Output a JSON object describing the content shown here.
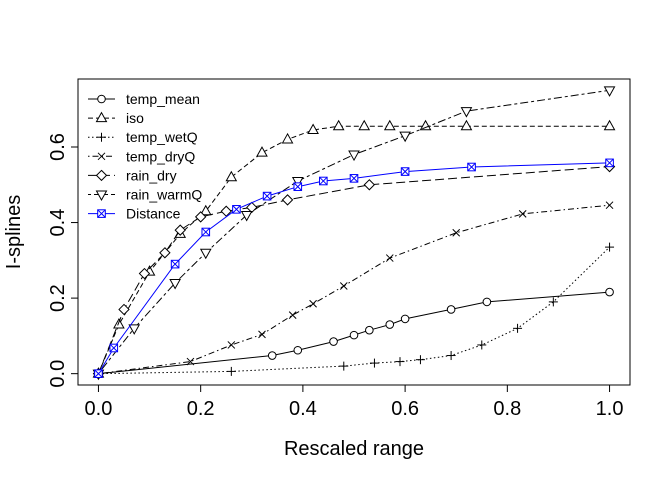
{
  "chart_data": {
    "type": "line",
    "title": "",
    "xlabel": "Rescaled range",
    "ylabel": "I-splines",
    "xlim": [
      -0.04,
      1.04
    ],
    "ylim": [
      -0.03,
      0.78
    ],
    "xticks": [
      0.0,
      0.2,
      0.4,
      0.6,
      0.8,
      1.0
    ],
    "xtick_labels": [
      "0.0",
      "0.2",
      "0.4",
      "0.6",
      "0.8",
      "1.0"
    ],
    "yticks": [
      0.0,
      0.2,
      0.4,
      0.6
    ],
    "ytick_labels": [
      "0.0",
      "0.2",
      "0.4",
      "0.6"
    ],
    "grid": false,
    "legend_position": "top-left",
    "series": [
      {
        "name": "temp_mean",
        "color": "#000000",
        "line_style": "solid",
        "marker": "circle",
        "x": [
          0.0,
          0.34,
          0.39,
          0.46,
          0.5,
          0.53,
          0.57,
          0.6,
          0.69,
          0.76,
          1.0
        ],
        "y": [
          0.0,
          0.048,
          0.062,
          0.085,
          0.102,
          0.115,
          0.13,
          0.145,
          0.17,
          0.19,
          0.216
        ]
      },
      {
        "name": "iso",
        "color": "#000000",
        "line_style": "dashed",
        "marker": "triangle-up",
        "x": [
          0.0,
          0.04,
          0.1,
          0.16,
          0.21,
          0.26,
          0.32,
          0.37,
          0.42,
          0.47,
          0.52,
          0.57,
          0.64,
          0.72,
          1.0
        ],
        "y": [
          0.0,
          0.13,
          0.27,
          0.37,
          0.43,
          0.52,
          0.585,
          0.62,
          0.645,
          0.655,
          0.655,
          0.655,
          0.655,
          0.655,
          0.655
        ]
      },
      {
        "name": "temp_wetQ",
        "color": "#000000",
        "line_style": "dotted",
        "marker": "plus",
        "x": [
          0.0,
          0.26,
          0.48,
          0.54,
          0.59,
          0.63,
          0.69,
          0.75,
          0.82,
          0.89,
          1.0
        ],
        "y": [
          0.0,
          0.006,
          0.02,
          0.028,
          0.032,
          0.037,
          0.048,
          0.076,
          0.12,
          0.19,
          0.335
        ]
      },
      {
        "name": "temp_dryQ",
        "color": "#000000",
        "line_style": "dashdot",
        "marker": "cross",
        "x": [
          0.0,
          0.18,
          0.26,
          0.32,
          0.38,
          0.42,
          0.48,
          0.57,
          0.7,
          0.83,
          1.0
        ],
        "y": [
          0.0,
          0.032,
          0.076,
          0.104,
          0.155,
          0.185,
          0.232,
          0.306,
          0.373,
          0.423,
          0.446
        ]
      },
      {
        "name": "rain_dry",
        "color": "#000000",
        "line_style": "longdash",
        "marker": "diamond",
        "x": [
          0.0,
          0.05,
          0.09,
          0.13,
          0.16,
          0.2,
          0.25,
          0.3,
          0.37,
          0.53,
          1.0
        ],
        "y": [
          0.0,
          0.17,
          0.265,
          0.32,
          0.38,
          0.415,
          0.43,
          0.44,
          0.46,
          0.5,
          0.548
        ]
      },
      {
        "name": "rain_warmQ",
        "color": "#000000",
        "line_style": "twodash",
        "marker": "triangle-down",
        "x": [
          0.0,
          0.07,
          0.15,
          0.21,
          0.29,
          0.39,
          0.5,
          0.6,
          0.72,
          1.0
        ],
        "y": [
          0.0,
          0.12,
          0.24,
          0.32,
          0.42,
          0.51,
          0.58,
          0.63,
          0.695,
          0.75
        ]
      },
      {
        "name": "Distance",
        "color": "#0000ff",
        "line_style": "solid",
        "marker": "square-x",
        "x": [
          0.0,
          0.03,
          0.15,
          0.21,
          0.27,
          0.33,
          0.39,
          0.44,
          0.5,
          0.6,
          0.73,
          1.0
        ],
        "y": [
          0.0,
          0.068,
          0.29,
          0.375,
          0.435,
          0.47,
          0.495,
          0.51,
          0.517,
          0.535,
          0.547,
          0.558
        ]
      }
    ]
  }
}
